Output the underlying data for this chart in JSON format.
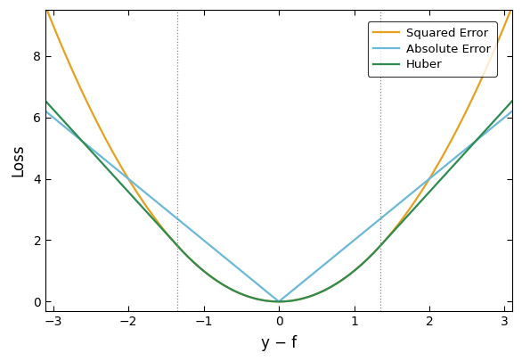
{
  "title": "",
  "xlabel": "y − f",
  "ylabel": "Loss",
  "xlim": [
    -3.1,
    3.1
  ],
  "ylim": [
    -0.3,
    9.5
  ],
  "xticks": [
    -3,
    -2,
    -1,
    0,
    1,
    2,
    3
  ],
  "yticks": [
    0,
    2,
    4,
    6,
    8
  ],
  "huber_delta": 1.345,
  "vline_positions": [
    -1.345,
    1.345
  ],
  "colors": {
    "squared": "#E8A020",
    "absolute": "#6BB8D8",
    "huber": "#2E8B50"
  },
  "legend_labels": [
    "Squared Error",
    "Absolute Error",
    "Huber"
  ],
  "line_width": 1.6,
  "background_color": "#ffffff",
  "plot_bg_color": "#ffffff"
}
